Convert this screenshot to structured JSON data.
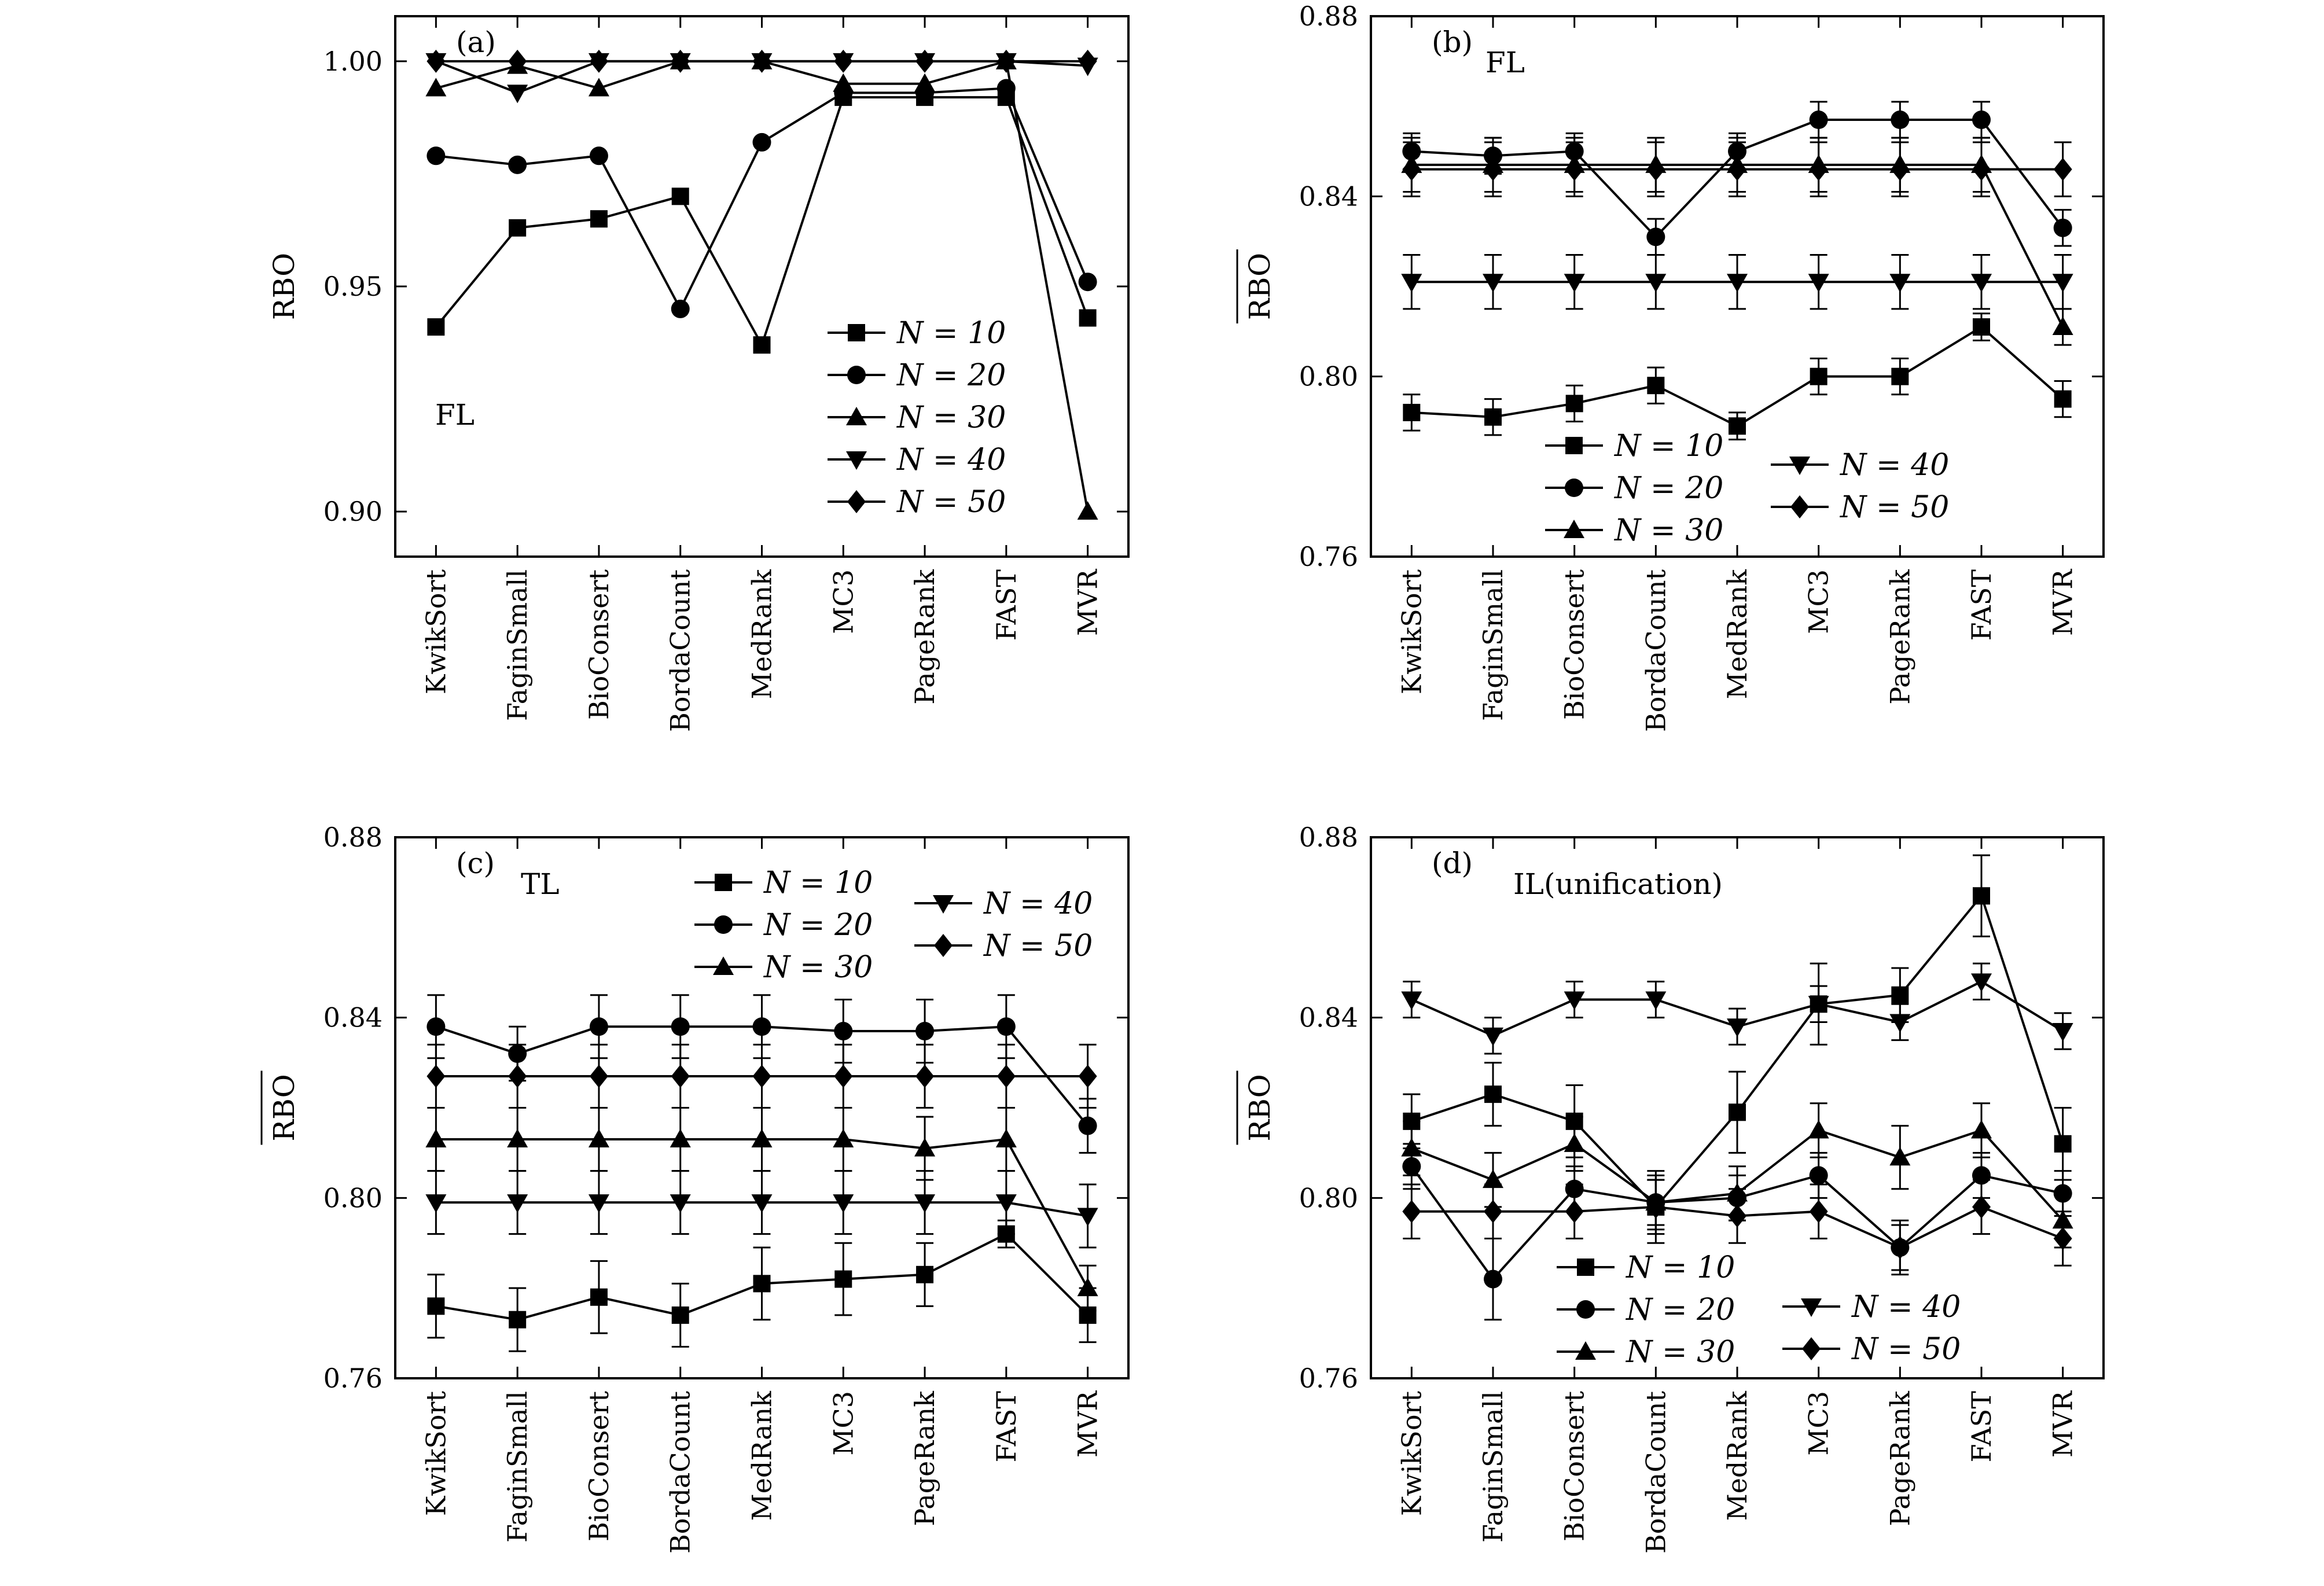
{
  "legend_labels": [
    "N = 10",
    "N = 20",
    "N = 30",
    "N = 40",
    "N = 50"
  ],
  "chart_data": [
    {
      "type": "line",
      "panel_label": "(a)",
      "annotation": "FL",
      "ylabel": "RBO",
      "ylabel_overline": false,
      "ylim": [
        0.89,
        1.01
      ],
      "yticks": [
        0.9,
        0.95,
        1.0
      ],
      "ytick_decimals": 2,
      "error_bars": false,
      "categories": [
        "KwikSort",
        "FaginSmall",
        "BioConsert",
        "BordaCount",
        "MedRank",
        "MC3",
        "PageRank",
        "FAST",
        "MVR"
      ],
      "series": [
        {
          "name": "N = 10",
          "values": [
            0.941,
            0.963,
            0.965,
            0.97,
            0.937,
            0.992,
            0.992,
            0.992,
            0.943
          ]
        },
        {
          "name": "N = 20",
          "values": [
            0.979,
            0.977,
            0.979,
            0.945,
            0.982,
            0.993,
            0.993,
            0.994,
            0.951
          ]
        },
        {
          "name": "N = 30",
          "values": [
            0.994,
            0.999,
            0.994,
            1.0,
            1.0,
            0.995,
            0.995,
            1.0,
            0.9
          ]
        },
        {
          "name": "N = 40",
          "values": [
            1.0,
            0.993,
            1.0,
            1.0,
            1.0,
            1.0,
            1.0,
            1.0,
            0.999
          ]
        },
        {
          "name": "N = 50",
          "values": [
            1.0,
            1.0,
            1.0,
            1.0,
            1.0,
            1.0,
            1.0,
            1.0,
            1.0
          ]
        }
      ]
    },
    {
      "type": "line",
      "panel_label": "(b)",
      "annotation": "FL",
      "ylabel": "RBO",
      "ylabel_overline": true,
      "ylim": [
        0.76,
        0.88
      ],
      "yticks": [
        0.76,
        0.8,
        0.84,
        0.88
      ],
      "ytick_decimals": 2,
      "error_bars": true,
      "categories": [
        "KwikSort",
        "FaginSmall",
        "BioConsert",
        "BordaCount",
        "MedRank",
        "MC3",
        "PageRank",
        "FAST",
        "MVR"
      ],
      "series": [
        {
          "name": "N = 10",
          "values": [
            0.792,
            0.791,
            0.794,
            0.798,
            0.789,
            0.8,
            0.8,
            0.811,
            0.795
          ],
          "errors": [
            0.004,
            0.004,
            0.004,
            0.004,
            0.003,
            0.004,
            0.004,
            0.003,
            0.004
          ]
        },
        {
          "name": "N = 20",
          "values": [
            0.85,
            0.849,
            0.85,
            0.831,
            0.85,
            0.857,
            0.857,
            0.857,
            0.833
          ],
          "errors": [
            0.004,
            0.004,
            0.004,
            0.004,
            0.004,
            0.004,
            0.004,
            0.004,
            0.004
          ]
        },
        {
          "name": "N = 30",
          "values": [
            0.847,
            0.847,
            0.847,
            0.847,
            0.847,
            0.847,
            0.847,
            0.847,
            0.811
          ],
          "errors": [
            0.006,
            0.006,
            0.006,
            0.006,
            0.006,
            0.006,
            0.006,
            0.006,
            0.004
          ]
        },
        {
          "name": "N = 40",
          "values": [
            0.821,
            0.821,
            0.821,
            0.821,
            0.821,
            0.821,
            0.821,
            0.821,
            0.821
          ],
          "errors": [
            0.006,
            0.006,
            0.006,
            0.006,
            0.006,
            0.006,
            0.006,
            0.006,
            0.006
          ]
        },
        {
          "name": "N = 50",
          "values": [
            0.846,
            0.846,
            0.846,
            0.846,
            0.846,
            0.846,
            0.846,
            0.846,
            0.846
          ],
          "errors": [
            0.006,
            0.006,
            0.006,
            0.006,
            0.006,
            0.006,
            0.006,
            0.006,
            0.006
          ]
        }
      ]
    },
    {
      "type": "line",
      "panel_label": "(c)",
      "annotation": "TL",
      "ylabel": "RBO",
      "ylabel_overline": true,
      "ylim": [
        0.76,
        0.88
      ],
      "yticks": [
        0.76,
        0.8,
        0.84,
        0.88
      ],
      "ytick_decimals": 2,
      "error_bars": true,
      "categories": [
        "KwikSort",
        "FaginSmall",
        "BioConsert",
        "BordaCount",
        "MedRank",
        "MC3",
        "PageRank",
        "FAST",
        "MVR"
      ],
      "series": [
        {
          "name": "N = 10",
          "values": [
            0.776,
            0.773,
            0.778,
            0.774,
            0.781,
            0.782,
            0.783,
            0.792,
            0.774
          ],
          "errors": [
            0.007,
            0.007,
            0.008,
            0.007,
            0.008,
            0.008,
            0.007,
            0.003,
            0.006
          ]
        },
        {
          "name": "N = 20",
          "values": [
            0.838,
            0.832,
            0.838,
            0.838,
            0.838,
            0.837,
            0.837,
            0.838,
            0.816
          ],
          "errors": [
            0.007,
            0.006,
            0.007,
            0.007,
            0.007,
            0.007,
            0.007,
            0.007,
            0.006
          ]
        },
        {
          "name": "N = 30",
          "values": [
            0.813,
            0.813,
            0.813,
            0.813,
            0.813,
            0.813,
            0.811,
            0.813,
            0.78
          ],
          "errors": [
            0.007,
            0.007,
            0.007,
            0.007,
            0.007,
            0.007,
            0.007,
            0.007,
            0.005
          ]
        },
        {
          "name": "N = 40",
          "values": [
            0.799,
            0.799,
            0.799,
            0.799,
            0.799,
            0.799,
            0.799,
            0.799,
            0.796
          ],
          "errors": [
            0.007,
            0.007,
            0.007,
            0.007,
            0.007,
            0.007,
            0.007,
            0.007,
            0.007
          ]
        },
        {
          "name": "N = 50",
          "values": [
            0.827,
            0.827,
            0.827,
            0.827,
            0.827,
            0.827,
            0.827,
            0.827,
            0.827
          ],
          "errors": [
            0.007,
            0.007,
            0.007,
            0.007,
            0.007,
            0.007,
            0.007,
            0.007,
            0.007
          ]
        }
      ]
    },
    {
      "type": "line",
      "panel_label": "(d)",
      "annotation": "IL(unification)",
      "ylabel": "RBO",
      "ylabel_overline": true,
      "ylim": [
        0.76,
        0.88
      ],
      "yticks": [
        0.76,
        0.8,
        0.84,
        0.88
      ],
      "ytick_decimals": 2,
      "error_bars": true,
      "categories": [
        "KwikSort",
        "FaginSmall",
        "BioConsert",
        "BordaCount",
        "MedRank",
        "MC3",
        "PageRank",
        "FAST",
        "MVR"
      ],
      "series": [
        {
          "name": "N = 10",
          "values": [
            0.817,
            0.823,
            0.817,
            0.798,
            0.819,
            0.843,
            0.845,
            0.867,
            0.812
          ],
          "errors": [
            0.006,
            0.007,
            0.008,
            0.008,
            0.009,
            0.009,
            0.006,
            0.009,
            0.008
          ]
        },
        {
          "name": "N = 20",
          "values": [
            0.807,
            0.782,
            0.802,
            0.799,
            0.8,
            0.805,
            0.789,
            0.805,
            0.801
          ],
          "errors": [
            0.005,
            0.009,
            0.005,
            0.005,
            0.005,
            0.005,
            0.005,
            0.005,
            0.005
          ]
        },
        {
          "name": "N = 30",
          "values": [
            0.811,
            0.804,
            0.812,
            0.799,
            0.801,
            0.815,
            0.809,
            0.815,
            0.795
          ],
          "errors": [
            0.006,
            0.006,
            0.006,
            0.006,
            0.006,
            0.006,
            0.007,
            0.006,
            0.006
          ]
        },
        {
          "name": "N = 40",
          "values": [
            0.844,
            0.836,
            0.844,
            0.844,
            0.838,
            0.843,
            0.839,
            0.848,
            0.837
          ],
          "errors": [
            0.004,
            0.004,
            0.004,
            0.004,
            0.004,
            0.004,
            0.004,
            0.004,
            0.004
          ]
        },
        {
          "name": "N = 50",
          "values": [
            0.797,
            0.797,
            0.797,
            0.798,
            0.796,
            0.797,
            0.789,
            0.798,
            0.791
          ],
          "errors": [
            0.006,
            0.006,
            0.006,
            0.006,
            0.006,
            0.006,
            0.006,
            0.006,
            0.006
          ]
        }
      ]
    }
  ]
}
